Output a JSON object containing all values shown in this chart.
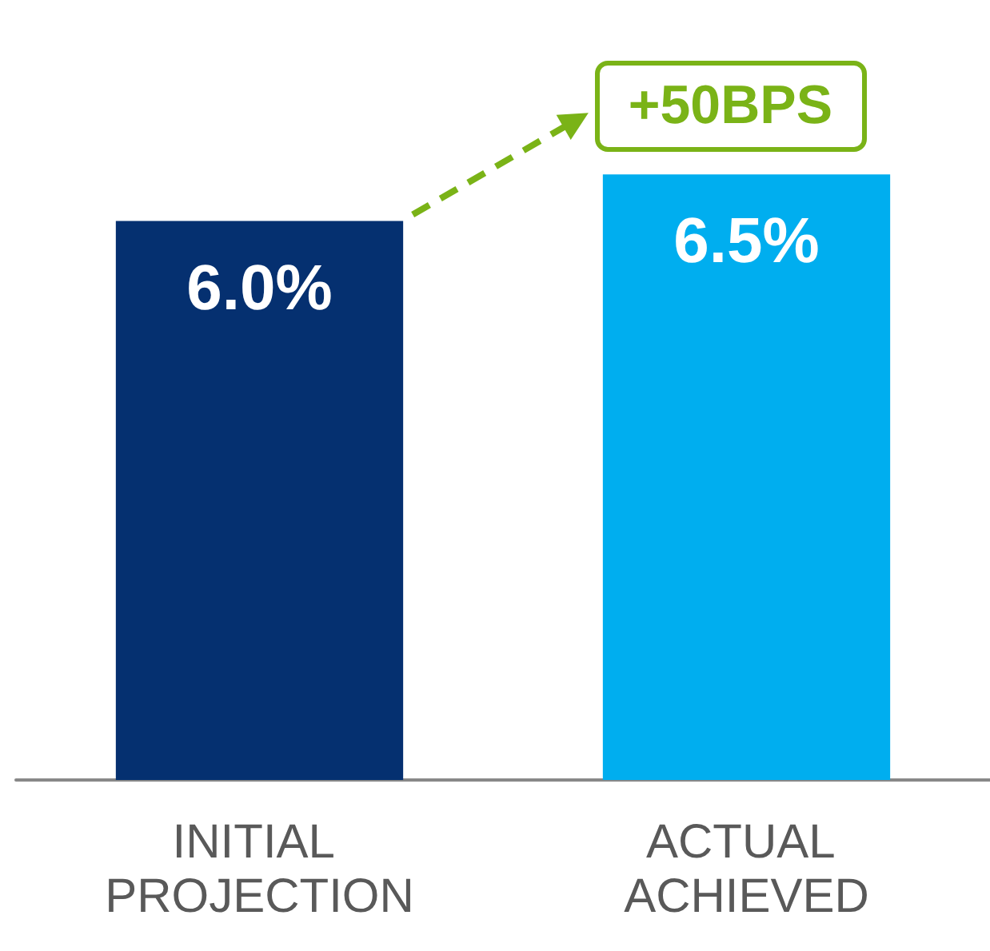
{
  "chart_data": {
    "type": "bar",
    "categories": [
      "INITIAL PROJECTION",
      "ACTUAL ACHIEVED"
    ],
    "values": [
      6.0,
      6.5
    ],
    "colors": [
      "#053070",
      "#00aeef"
    ],
    "value_labels": [
      "6.0%",
      "6.5%"
    ],
    "tick_labels": "x",
    "annotations": [
      "+50BPS"
    ]
  }
}
